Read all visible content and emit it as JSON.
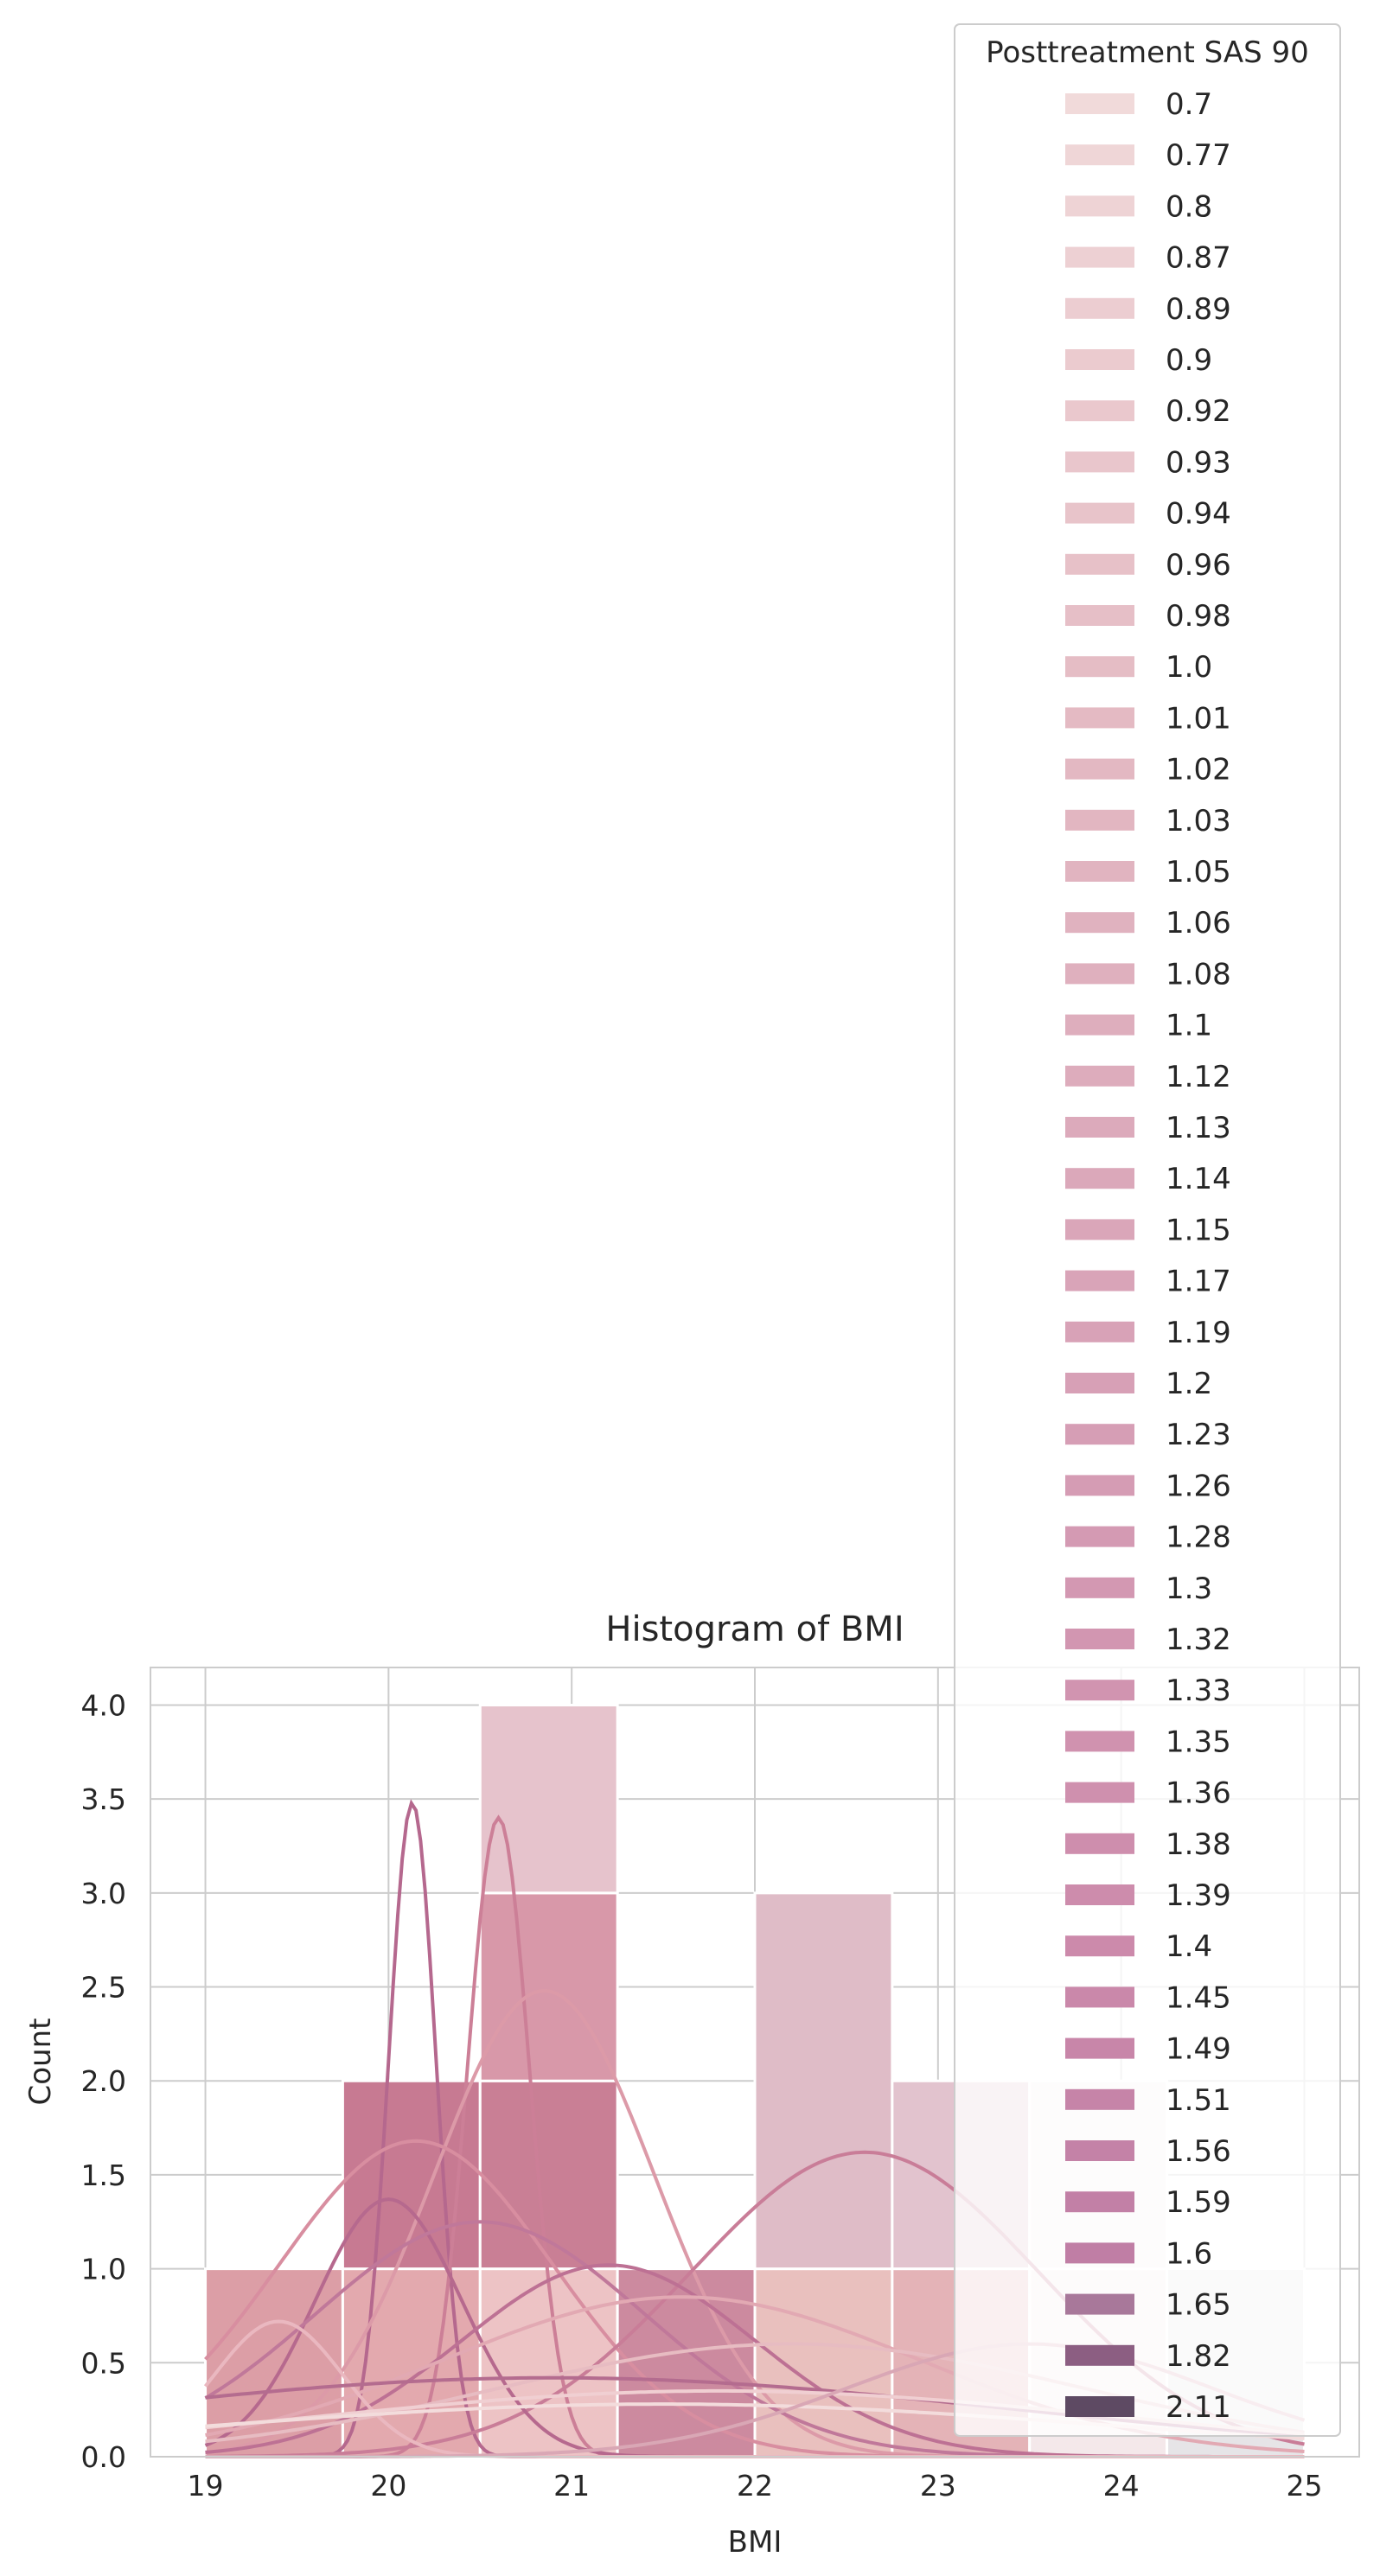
{
  "chart_data": {
    "type": "bar",
    "title": "Histogram of BMI",
    "xlabel": "BMI",
    "ylabel": "Count",
    "xlim": [
      18.7,
      25.3
    ],
    "ylim": [
      0,
      4.2
    ],
    "xticks": [
      "19",
      "20",
      "21",
      "22",
      "23",
      "24",
      "25"
    ],
    "yticks": [
      "0.0",
      "0.5",
      "1.0",
      "1.5",
      "2.0",
      "2.5",
      "3.0",
      "3.5",
      "4.0"
    ],
    "grid": true,
    "legend_position": "top-right",
    "legend_title": "Posttreatment SAS 90",
    "series": [
      {
        "name": "0.7",
        "color": "#f1dada"
      },
      {
        "name": "0.77",
        "color": "#efd6d7"
      },
      {
        "name": "0.8",
        "color": "#eed3d5"
      },
      {
        "name": "0.87",
        "color": "#edd0d3"
      },
      {
        "name": "0.89",
        "color": "#eccdd1"
      },
      {
        "name": "0.9",
        "color": "#ebcbcf"
      },
      {
        "name": "0.92",
        "color": "#eac8cd"
      },
      {
        "name": "0.93",
        "color": "#e9c6cc"
      },
      {
        "name": "0.94",
        "color": "#e8c4ca"
      },
      {
        "name": "0.96",
        "color": "#e7c1c8"
      },
      {
        "name": "0.98",
        "color": "#e6bfc7"
      },
      {
        "name": "1.0",
        "color": "#e5bdc5"
      },
      {
        "name": "1.01",
        "color": "#e4bac3"
      },
      {
        "name": "1.02",
        "color": "#e3b8c2"
      },
      {
        "name": "1.03",
        "color": "#e2b6c1"
      },
      {
        "name": "1.05",
        "color": "#e1b4c0"
      },
      {
        "name": "1.06",
        "color": "#e0b2bf"
      },
      {
        "name": "1.08",
        "color": "#dfb0be"
      },
      {
        "name": "1.1",
        "color": "#deaebd"
      },
      {
        "name": "1.12",
        "color": "#ddacbc"
      },
      {
        "name": "1.13",
        "color": "#dcaabb"
      },
      {
        "name": "1.14",
        "color": "#dba8ba"
      },
      {
        "name": "1.15",
        "color": "#daa6b9"
      },
      {
        "name": "1.17",
        "color": "#d9a4b8"
      },
      {
        "name": "1.19",
        "color": "#d8a2b7"
      },
      {
        "name": "1.2",
        "color": "#d7a0b6"
      },
      {
        "name": "1.23",
        "color": "#d69eb5"
      },
      {
        "name": "1.26",
        "color": "#d59cb4"
      },
      {
        "name": "1.28",
        "color": "#d49ab3"
      },
      {
        "name": "1.3",
        "color": "#d398b2"
      },
      {
        "name": "1.32",
        "color": "#d296b1"
      },
      {
        "name": "1.33",
        "color": "#d194b0"
      },
      {
        "name": "1.35",
        "color": "#d092af"
      },
      {
        "name": "1.36",
        "color": "#cf90ae"
      },
      {
        "name": "1.38",
        "color": "#ce8ead"
      },
      {
        "name": "1.39",
        "color": "#cd8cac"
      },
      {
        "name": "1.4",
        "color": "#cc8aab"
      },
      {
        "name": "1.45",
        "color": "#ca88aa"
      },
      {
        "name": "1.49",
        "color": "#c886a9"
      },
      {
        "name": "1.51",
        "color": "#c684a8"
      },
      {
        "name": "1.56",
        "color": "#c482a7"
      },
      {
        "name": "1.59",
        "color": "#c280a6"
      },
      {
        "name": "1.6",
        "color": "#c07ea5"
      },
      {
        "name": "1.65",
        "color": "#a8789a"
      },
      {
        "name": "1.82",
        "color": "#8c5e82"
      },
      {
        "name": "2.11",
        "color": "#5e4a63"
      }
    ],
    "bars": [
      {
        "x0": 19.0,
        "x1": 19.75,
        "y0": 0,
        "y1": 1,
        "color": "#dc9ea6"
      },
      {
        "x0": 19.75,
        "x1": 20.5,
        "y0": 0,
        "y1": 1,
        "color": "#e3a9ae"
      },
      {
        "x0": 19.75,
        "x1": 20.5,
        "y0": 1,
        "y1": 2,
        "color": "#c77a92"
      },
      {
        "x0": 20.5,
        "x1": 21.25,
        "y0": 0,
        "y1": 1,
        "color": "#edc3c5"
      },
      {
        "x0": 20.5,
        "x1": 21.25,
        "y0": 1,
        "y1": 2,
        "color": "#c97f95"
      },
      {
        "x0": 20.5,
        "x1": 21.25,
        "y0": 2,
        "y1": 3,
        "color": "#d898a9"
      },
      {
        "x0": 20.5,
        "x1": 21.25,
        "y0": 3,
        "y1": 4,
        "color": "#e6c3cc"
      },
      {
        "x0": 21.25,
        "x1": 22.0,
        "y0": 0,
        "y1": 1,
        "color": "#cc8a9f"
      },
      {
        "x0": 22.0,
        "x1": 22.75,
        "y0": 0,
        "y1": 1,
        "color": "#e9c0be"
      },
      {
        "x0": 22.0,
        "x1": 22.75,
        "y0": 1,
        "y1": 3,
        "color": "#dfbcc7"
      },
      {
        "x0": 22.75,
        "x1": 23.5,
        "y0": 0,
        "y1": 1,
        "color": "#e4b3b7"
      },
      {
        "x0": 22.75,
        "x1": 23.5,
        "y0": 1,
        "y1": 2,
        "color": "#e2c3ce"
      },
      {
        "x0": 23.5,
        "x1": 24.25,
        "y0": 0,
        "y1": 1,
        "color": "#f4e8ea"
      },
      {
        "x0": 23.5,
        "x1": 24.25,
        "y0": 1,
        "y1": 2,
        "color": "#f6eff1"
      },
      {
        "x0": 24.25,
        "x1": 25.0,
        "y0": 0,
        "y1": 1,
        "color": "#e6e4e7"
      }
    ],
    "kde": [
      {
        "mu": 20.13,
        "sd": 0.13,
        "peak": 3.48,
        "color": "#b5688e"
      },
      {
        "mu": 20.6,
        "sd": 0.17,
        "peak": 3.4,
        "color": "#cc7f97"
      },
      {
        "mu": 20.85,
        "sd": 0.6,
        "peak": 2.48,
        "color": "#dc9aa8"
      },
      {
        "mu": 20.15,
        "sd": 0.75,
        "peak": 1.68,
        "color": "#d88ea0"
      },
      {
        "mu": 22.6,
        "sd": 0.95,
        "peak": 1.62,
        "color": "#c97d98"
      },
      {
        "mu": 20.0,
        "sd": 0.4,
        "peak": 1.37,
        "color": "#b6698e"
      },
      {
        "mu": 20.5,
        "sd": 0.9,
        "peak": 1.25,
        "color": "#c0789a"
      },
      {
        "mu": 21.2,
        "sd": 0.8,
        "peak": 1.02,
        "color": "#bd7194"
      },
      {
        "mu": 21.6,
        "sd": 1.3,
        "peak": 0.85,
        "color": "#e2a9b3"
      },
      {
        "mu": 19.4,
        "sd": 0.35,
        "peak": 0.72,
        "color": "#eab8c0"
      },
      {
        "mu": 22.2,
        "sd": 1.6,
        "peak": 0.6,
        "color": "#e7bcc2"
      },
      {
        "mu": 20.9,
        "sd": 2.5,
        "peak": 0.42,
        "color": "#b46c8f"
      },
      {
        "mu": 21.8,
        "sd": 2.2,
        "peak": 0.35,
        "color": "#f0cfd2"
      },
      {
        "mu": 21.5,
        "sd": 2.4,
        "peak": 0.28,
        "color": "#f3dcdc"
      },
      {
        "mu": 23.5,
        "sd": 1.0,
        "peak": 0.6,
        "color": "#d9a7b5"
      }
    ]
  }
}
